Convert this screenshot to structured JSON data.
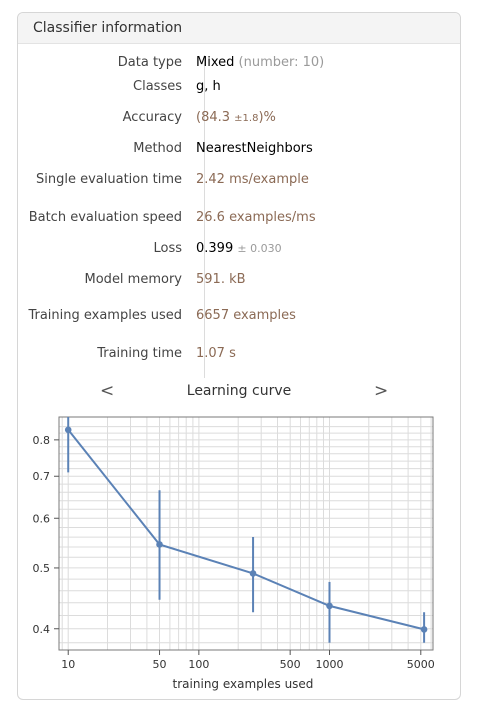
{
  "panel": {
    "title": "Classifier information"
  },
  "rows": [
    {
      "label": "Data type",
      "value": "Mixed",
      "extra": "(number: 10)"
    },
    {
      "label": "Classes",
      "value": "g, h"
    },
    {
      "label": "Accuracy",
      "value_prefix": "(84.3",
      "value_pm": "±1.8",
      "value_suffix": ")%"
    },
    {
      "label": "Method",
      "value": "NearestNeighbors"
    },
    {
      "label": "Single evaluation time",
      "value": "2.42 ms/example"
    },
    {
      "label": "Batch evaluation speed",
      "value": "26.6 examples/ms"
    },
    {
      "label": "Loss",
      "value": "0.399",
      "value_pm": "± 0.030"
    },
    {
      "label": "Model memory",
      "value": "591. kB"
    },
    {
      "label": "Training examples used",
      "value": "6657 examples"
    },
    {
      "label": "Training time",
      "value": "1.07 s"
    }
  ],
  "learning_curve": {
    "title": "Learning curve",
    "prev_label": "<",
    "next_label": ">"
  },
  "colors": {
    "series": "#5b82b6",
    "grid": "#dcdcdc",
    "frame": "#7a7a7a"
  },
  "chart_data": {
    "type": "line",
    "title": "Learning curve",
    "xlabel": "training examples used",
    "ylabel": "",
    "xscale": "log",
    "yscale": "log",
    "xlim": [
      8.5,
      6200
    ],
    "ylim": [
      0.37,
      0.87
    ],
    "grid": true,
    "x_ticks": [
      10,
      50,
      100,
      500,
      1000,
      5000
    ],
    "x_tick_labels": [
      "10",
      "50",
      "100",
      "500",
      "1000",
      "5000"
    ],
    "y_ticks": [
      0.4,
      0.5,
      0.6,
      0.7,
      0.8
    ],
    "y_tick_labels": [
      "0.4",
      "0.5",
      "0.6",
      "0.7",
      "0.8"
    ],
    "series": [
      {
        "x": [
          10,
          50,
          260,
          1000,
          5300
        ],
        "y": [
          0.83,
          0.545,
          0.49,
          0.435,
          0.399
        ],
        "err_low": [
          0.71,
          0.445,
          0.425,
          0.38,
          0.38
        ],
        "err_high": [
          0.87,
          0.665,
          0.56,
          0.475,
          0.425
        ]
      }
    ]
  }
}
